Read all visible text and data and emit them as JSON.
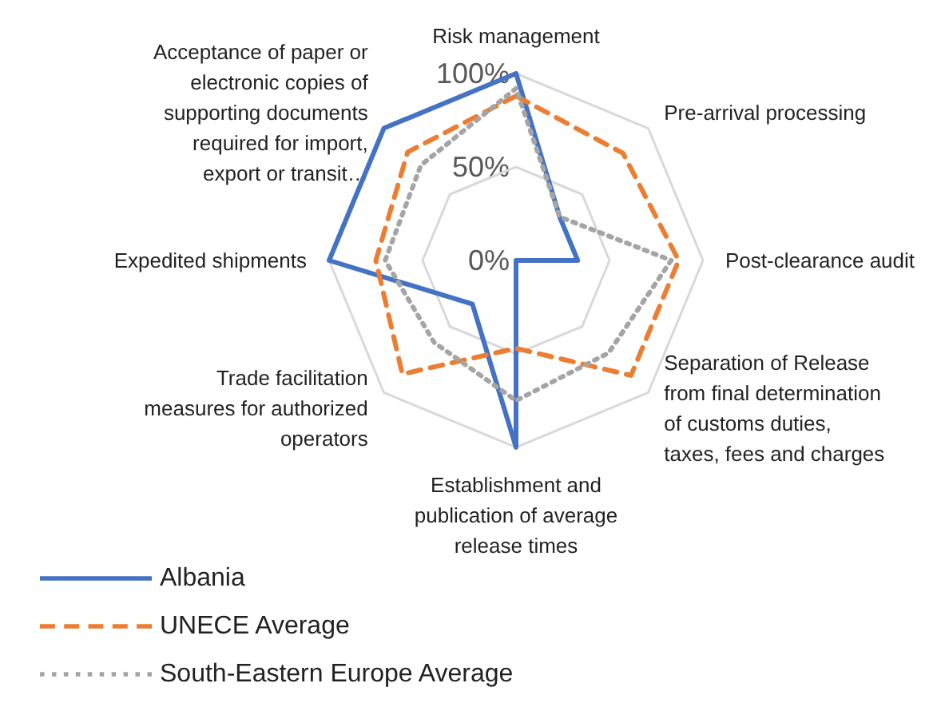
{
  "chart_data": {
    "type": "radar",
    "categories": [
      "Risk management",
      "Pre-arrival processing",
      "Post-clearance audit",
      "Separation of Release from final determination of customs duties, taxes, fees and charges",
      "Establishment and publication of average release times",
      "Trade facilitation measures for authorized operators",
      "Expedited shipments",
      "Acceptance of paper or electronic copies of supporting documents required for import, export or transit…"
    ],
    "series": [
      {
        "name": "Albania",
        "color": "#4472c4",
        "line_style": "solid",
        "values": [
          100,
          33,
          33,
          0,
          100,
          33,
          100,
          100
        ]
      },
      {
        "name": "UNECE Average",
        "color": "#ed7d31",
        "line_style": "dashed",
        "values": [
          88,
          81,
          87,
          87,
          47,
          86,
          75,
          82
        ]
      },
      {
        "name": "South-Eastern Europe Average",
        "color": "#a5a5a5",
        "line_style": "dotted",
        "values": [
          92,
          33,
          83,
          70,
          75,
          62,
          70,
          72
        ]
      }
    ],
    "ylim": [
      0,
      100
    ],
    "yticks": [
      {
        "value": 0,
        "label": "0%"
      },
      {
        "value": 50,
        "label": "50%"
      },
      {
        "value": 100,
        "label": "100%"
      }
    ],
    "grid": true,
    "legend": "bottom left",
    "marker": "none"
  }
}
